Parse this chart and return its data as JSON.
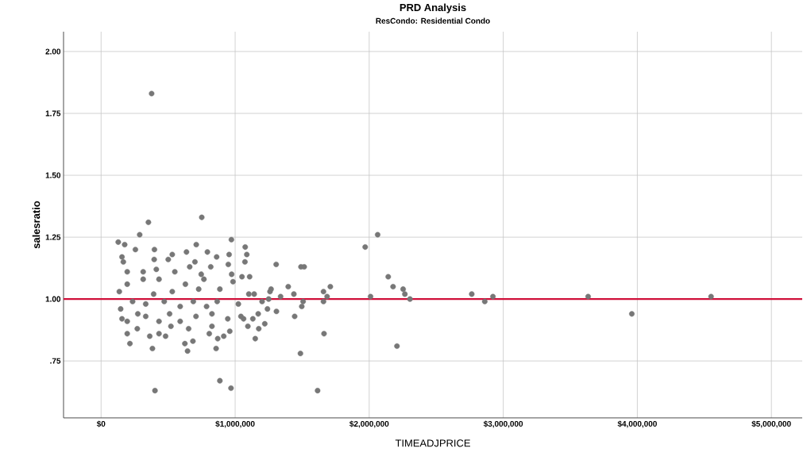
{
  "chart_data": {
    "type": "scatter",
    "title": "PRD Analysis",
    "subtitle": "ResCondo: Residential Condo",
    "xlabel": "TIMEADJPRICE",
    "ylabel": "salesratio",
    "x": [
      377000,
      353000,
      751000,
      288000,
      128000,
      176000,
      972000,
      710000,
      1075000,
      1087000,
      1073000,
      1306000,
      256000,
      398000,
      156000,
      166000,
      637000,
      793000,
      862000,
      955000,
      531000,
      501000,
      396000,
      700000,
      949000,
      818000,
      661000,
      314000,
      412000,
      550000,
      974000,
      1051000,
      1108000,
      747000,
      195000,
      2063000,
      1970000,
      1491000,
      1515000,
      2142000,
      2178000,
      2253000,
      2266000,
      2304000,
      2010000,
      2207000,
      1710000,
      1659000,
      1686000,
      1659000,
      1663000,
      1487000,
      1615000,
      1444000,
      1497000,
      1507000,
      1438000,
      1396000,
      1339000,
      1268000,
      1308000,
      1241000,
      1221000,
      1176000,
      1150000,
      1095000,
      1250000,
      1201000,
      1142000,
      1063000,
      1132000,
      1172000,
      402000,
      886000,
      969000,
      215000,
      383000,
      645000,
      625000,
      685000,
      858000,
      870000,
      915000,
      807000,
      195000,
      270000,
      363000,
      481000,
      432000,
      653000,
      960000,
      827000,
      521000,
      156000,
      146000,
      333000,
      432000,
      590000,
      708000,
      945000,
      1043000,
      136000,
      195000,
      314000,
      432000,
      629000,
      767000,
      886000,
      984000,
      1102000,
      1260000,
      235000,
      333000,
      471000,
      590000,
      688000,
      787000,
      866000,
      1024000,
      392000,
      531000,
      728000,
      274000,
      511000,
      827000,
      195000,
      2765000,
      2862000,
      2923000,
      3633000,
      3959000,
      4550000
    ],
    "series": [
      {
        "color": "#777777",
        "values": [
          1.83,
          1.31,
          1.33,
          1.26,
          1.23,
          1.22,
          1.24,
          1.22,
          1.21,
          1.18,
          1.15,
          1.14,
          1.2,
          1.2,
          1.17,
          1.15,
          1.19,
          1.19,
          1.17,
          1.18,
          1.18,
          1.16,
          1.16,
          1.15,
          1.14,
          1.13,
          1.13,
          1.11,
          1.12,
          1.11,
          1.1,
          1.09,
          1.09,
          1.1,
          1.11,
          1.26,
          1.21,
          1.13,
          1.13,
          1.09,
          1.05,
          1.04,
          1.02,
          1.0,
          1.01,
          0.81,
          1.05,
          1.03,
          1.01,
          0.99,
          0.86,
          0.78,
          0.63,
          0.93,
          0.97,
          0.99,
          1.02,
          1.05,
          1.01,
          1.04,
          0.95,
          0.96,
          0.9,
          0.88,
          0.84,
          0.89,
          1.0,
          0.99,
          1.02,
          0.92,
          0.92,
          0.94,
          0.63,
          0.67,
          0.64,
          0.82,
          0.8,
          0.79,
          0.82,
          0.83,
          0.8,
          0.84,
          0.85,
          0.86,
          0.86,
          0.88,
          0.85,
          0.85,
          0.86,
          0.88,
          0.87,
          0.89,
          0.89,
          0.92,
          0.96,
          0.93,
          0.91,
          0.91,
          0.93,
          0.92,
          0.93,
          1.03,
          1.06,
          1.08,
          1.08,
          1.06,
          1.08,
          1.04,
          1.07,
          1.02,
          1.03,
          0.99,
          0.98,
          0.99,
          0.97,
          0.99,
          0.97,
          0.99,
          0.98,
          1.02,
          1.03,
          1.04,
          0.94,
          0.94,
          0.94,
          0.91,
          1.02,
          0.99,
          1.01,
          1.01,
          0.94,
          1.01
        ]
      }
    ],
    "marker": "circle",
    "grid": true,
    "xlim": [
      -280000,
      5230000
    ],
    "ylim": [
      0.52,
      2.08
    ],
    "xticks": [
      {
        "value": 0,
        "label": "$0"
      },
      {
        "value": 1000000,
        "label": "$1,000,000"
      },
      {
        "value": 2000000,
        "label": "$2,000,000"
      },
      {
        "value": 3000000,
        "label": "$3,000,000"
      },
      {
        "value": 4000000,
        "label": "$4,000,000"
      },
      {
        "value": 5000000,
        "label": "$5,000,000"
      }
    ],
    "yticks": [
      {
        "value": 0.75,
        "label": ".75"
      },
      {
        "value": 1,
        "label": "1.00"
      },
      {
        "value": 1.25,
        "label": "1.25"
      },
      {
        "value": 1.5,
        "label": "1.50"
      },
      {
        "value": 1.75,
        "label": "1.75"
      },
      {
        "value": 2,
        "label": "2.00"
      }
    ],
    "ref_lines": [
      {
        "axis": "y",
        "value": 1,
        "color": "#d0103a"
      }
    ]
  }
}
